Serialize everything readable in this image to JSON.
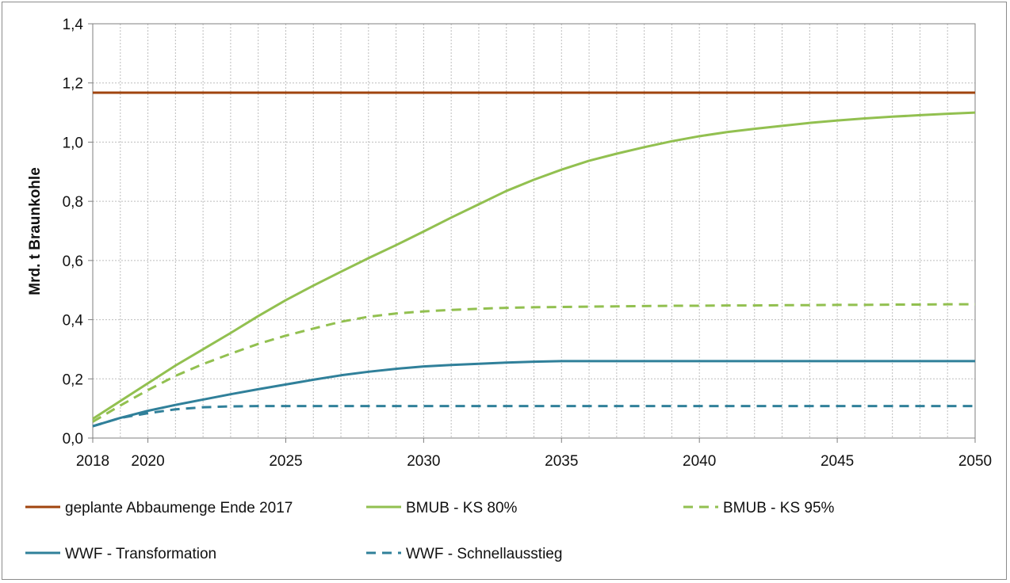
{
  "chart_data": {
    "type": "line",
    "title": "",
    "xlabel": "",
    "ylabel": "Mrd. t Braunkohle",
    "xlim": [
      2018,
      2050
    ],
    "ylim": [
      0.0,
      1.4
    ],
    "x_ticks": [
      {
        "value": 2018,
        "label": "2018"
      },
      {
        "value": 2020,
        "label": "2020"
      },
      {
        "value": 2025,
        "label": "2025"
      },
      {
        "value": 2030,
        "label": "2030"
      },
      {
        "value": 2035,
        "label": "2035"
      },
      {
        "value": 2040,
        "label": "2040"
      },
      {
        "value": 2045,
        "label": "2045"
      },
      {
        "value": 2050,
        "label": "2050"
      }
    ],
    "y_ticks": [
      {
        "value": 0.0,
        "label": "0,0"
      },
      {
        "value": 0.2,
        "label": "0,2"
      },
      {
        "value": 0.4,
        "label": "0,4"
      },
      {
        "value": 0.6,
        "label": "0,6"
      },
      {
        "value": 0.8,
        "label": "0,8"
      },
      {
        "value": 1.0,
        "label": "1,0"
      },
      {
        "value": 1.2,
        "label": "1,2"
      },
      {
        "value": 1.4,
        "label": "1,4"
      }
    ],
    "grid": true,
    "legend_position": "bottom",
    "x": [
      2018,
      2019,
      2020,
      2021,
      2022,
      2023,
      2024,
      2025,
      2026,
      2027,
      2028,
      2029,
      2030,
      2031,
      2032,
      2033,
      2034,
      2035,
      2036,
      2037,
      2038,
      2039,
      2040,
      2041,
      2042,
      2043,
      2044,
      2045,
      2046,
      2047,
      2048,
      2049,
      2050
    ],
    "series": [
      {
        "name": "geplante Abbaumenge Ende 2017",
        "color": "#a0440e",
        "dashed": false,
        "values": [
          1.167,
          1.167,
          1.167,
          1.167,
          1.167,
          1.167,
          1.167,
          1.167,
          1.167,
          1.167,
          1.167,
          1.167,
          1.167,
          1.167,
          1.167,
          1.167,
          1.167,
          1.167,
          1.167,
          1.167,
          1.167,
          1.167,
          1.167,
          1.167,
          1.167,
          1.167,
          1.167,
          1.167,
          1.167,
          1.167,
          1.167,
          1.167,
          1.167
        ]
      },
      {
        "name": "BMUB - KS 80%",
        "color": "#92c050",
        "dashed": false,
        "values": [
          0.065,
          0.125,
          0.185,
          0.245,
          0.3,
          0.355,
          0.412,
          0.466,
          0.515,
          0.562,
          0.608,
          0.652,
          0.698,
          0.745,
          0.79,
          0.835,
          0.873,
          0.907,
          0.937,
          0.961,
          0.983,
          1.003,
          1.02,
          1.034,
          1.045,
          1.055,
          1.065,
          1.073,
          1.08,
          1.086,
          1.091,
          1.096,
          1.1
        ]
      },
      {
        "name": "BMUB -  KS 95%",
        "color": "#92c050",
        "dashed": true,
        "values": [
          0.055,
          0.11,
          0.162,
          0.21,
          0.25,
          0.285,
          0.318,
          0.346,
          0.37,
          0.393,
          0.41,
          0.421,
          0.428,
          0.433,
          0.437,
          0.44,
          0.442,
          0.443,
          0.444,
          0.445,
          0.446,
          0.447,
          0.447,
          0.448,
          0.448,
          0.449,
          0.449,
          0.45,
          0.45,
          0.451,
          0.451,
          0.452,
          0.452
        ]
      },
      {
        "name": "WWF - Transformation",
        "color": "#30809a",
        "dashed": false,
        "values": [
          0.04,
          0.068,
          0.092,
          0.112,
          0.13,
          0.148,
          0.165,
          0.181,
          0.197,
          0.212,
          0.224,
          0.234,
          0.242,
          0.247,
          0.251,
          0.255,
          0.258,
          0.26,
          0.26,
          0.26,
          0.26,
          0.26,
          0.26,
          0.26,
          0.26,
          0.26,
          0.26,
          0.26,
          0.26,
          0.26,
          0.26,
          0.26,
          0.26
        ]
      },
      {
        "name": "WWF - Schnellausstieg",
        "color": "#30809a",
        "dashed": true,
        "values": [
          0.04,
          0.068,
          0.084,
          0.097,
          0.104,
          0.107,
          0.108,
          0.108,
          0.108,
          0.108,
          0.108,
          0.108,
          0.108,
          0.108,
          0.108,
          0.108,
          0.108,
          0.108,
          0.108,
          0.108,
          0.108,
          0.108,
          0.108,
          0.108,
          0.108,
          0.108,
          0.108,
          0.108,
          0.108,
          0.108,
          0.108,
          0.108,
          0.108
        ]
      }
    ]
  }
}
